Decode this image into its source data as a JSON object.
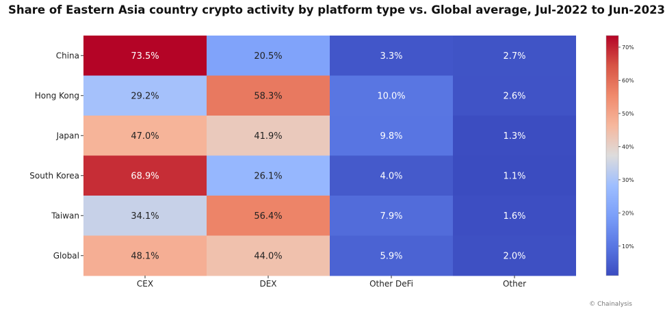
{
  "chart_data": {
    "type": "heatmap",
    "title": "Share of Eastern Asia country crypto activity by platform type vs. Global average, Jul-2022 to Jun-2023",
    "rows": [
      "China",
      "Hong Kong",
      "Japan",
      "South Korea",
      "Taiwan",
      "Global"
    ],
    "columns": [
      "CEX",
      "DEX",
      "Other DeFi",
      "Other"
    ],
    "values": [
      [
        73.5,
        20.5,
        3.3,
        2.7
      ],
      [
        29.2,
        58.3,
        10.0,
        2.6
      ],
      [
        47.0,
        41.9,
        9.8,
        1.3
      ],
      [
        68.9,
        26.1,
        4.0,
        1.1
      ],
      [
        34.1,
        56.4,
        7.9,
        1.6
      ],
      [
        48.1,
        44.0,
        5.9,
        2.0
      ]
    ],
    "cell_labels": [
      [
        "73.5%",
        "20.5%",
        "3.3%",
        "2.7%"
      ],
      [
        "29.2%",
        "58.3%",
        "10.0%",
        "2.6%"
      ],
      [
        "47.0%",
        "41.9%",
        "9.8%",
        "1.3%"
      ],
      [
        "68.9%",
        "26.1%",
        "4.0%",
        "1.1%"
      ],
      [
        "34.1%",
        "56.4%",
        "7.9%",
        "1.6%"
      ],
      [
        "48.1%",
        "44.0%",
        "5.9%",
        "2.0%"
      ]
    ],
    "colormap": "coolwarm",
    "color_range": [
      1.1,
      73.5
    ],
    "colorbar_ticks": [
      10,
      20,
      30,
      40,
      50,
      60,
      70
    ],
    "colorbar_tick_labels": [
      "10%",
      "20%",
      "30%",
      "40%",
      "50%",
      "60%",
      "70%"
    ],
    "colorbar_placement": "right"
  },
  "source": "© Chainalysis"
}
